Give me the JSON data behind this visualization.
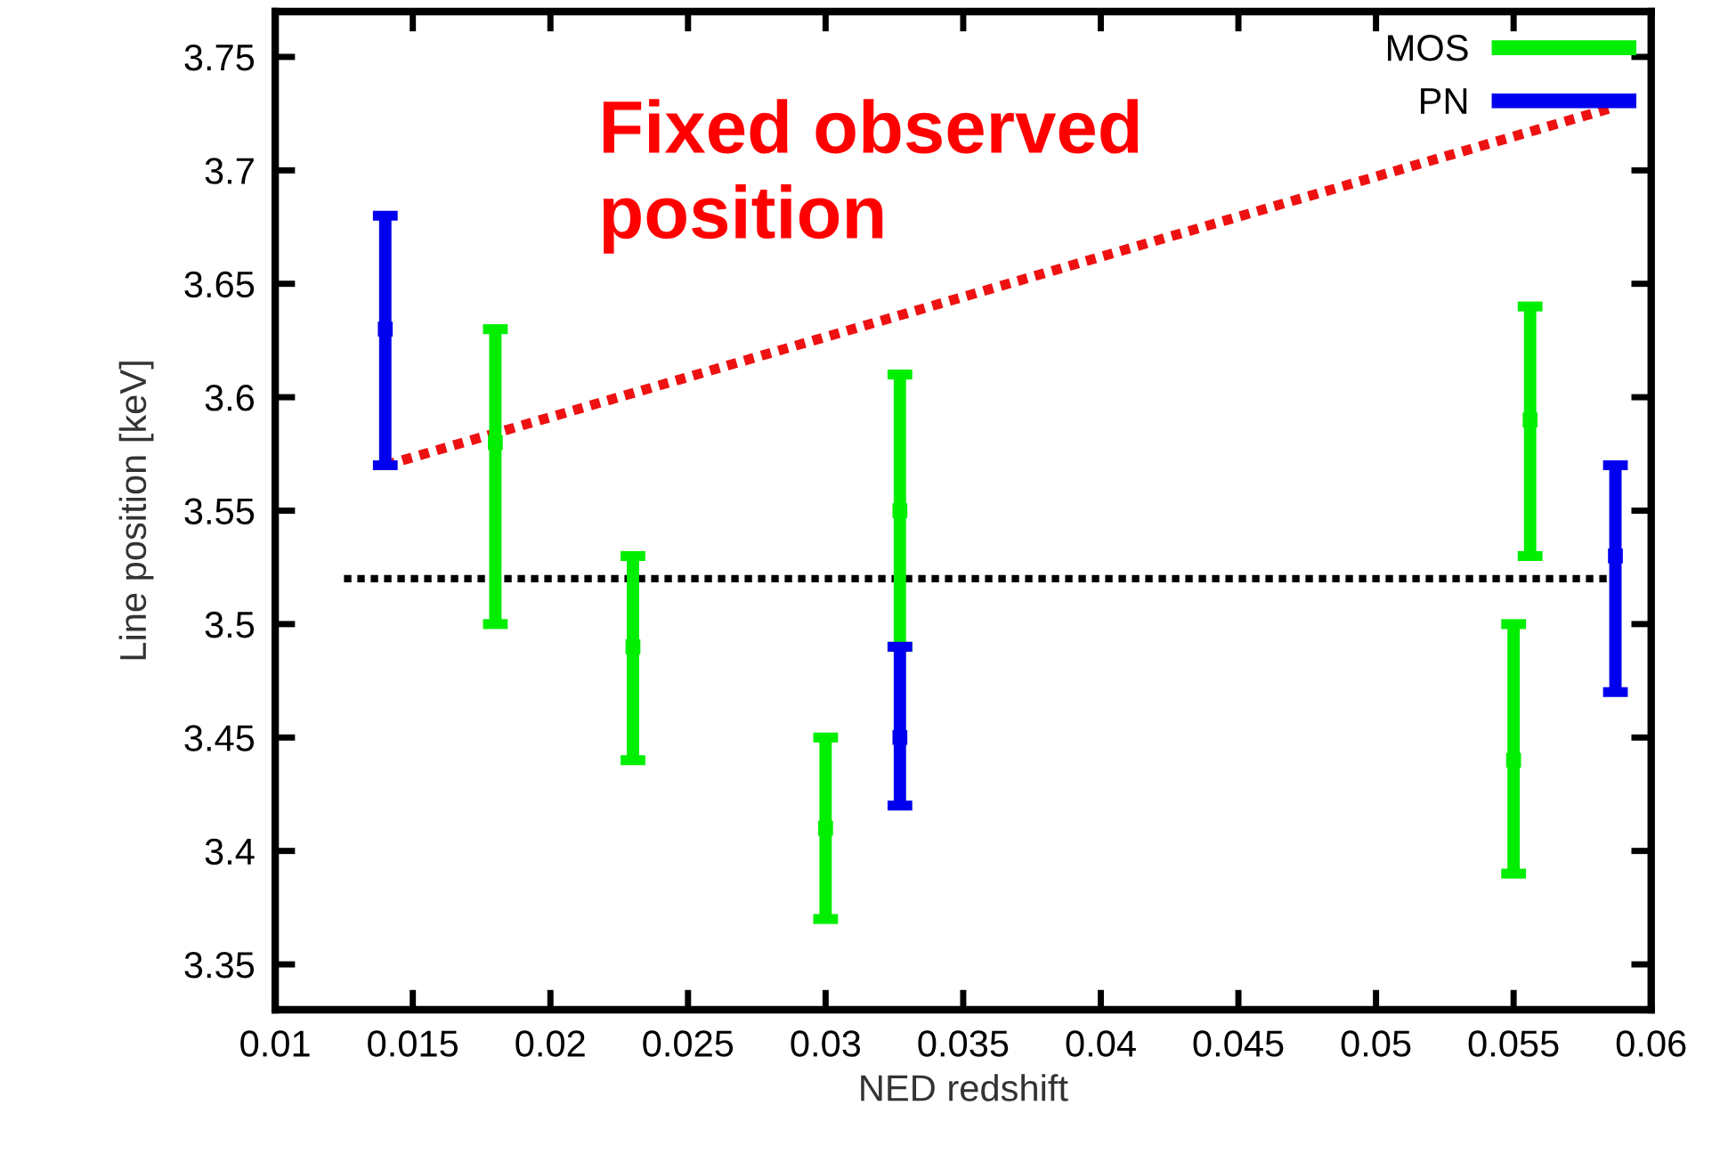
{
  "chart_data": {
    "type": "scatter",
    "xlabel": "NED redshift",
    "ylabel": "Line position [keV]",
    "annotations": [
      "Fixed observed position"
    ],
    "xlim": [
      0.01,
      0.06
    ],
    "xticks": [
      0.01,
      0.015,
      0.02,
      0.025,
      0.03,
      0.035,
      0.04,
      0.045,
      0.05,
      0.055,
      0.06
    ],
    "ylim": [
      3.33,
      3.77
    ],
    "yticks": [
      3.35,
      3.4,
      3.45,
      3.5,
      3.55,
      3.6,
      3.65,
      3.7,
      3.75
    ],
    "grid": false,
    "legend": "top right",
    "series": [
      {
        "name": "MOS",
        "color": "#00ee00",
        "marker": "square",
        "x": [
          0.018,
          0.023,
          0.03,
          0.0327,
          0.055,
          0.0556
        ],
        "values": [
          3.58,
          3.49,
          3.41,
          3.55,
          3.44,
          3.59
        ],
        "errors": [
          [
            3.5,
            3.63
          ],
          [
            3.44,
            3.53
          ],
          [
            3.37,
            3.45
          ],
          [
            3.49,
            3.61
          ],
          [
            3.39,
            3.5
          ],
          [
            3.53,
            3.64
          ]
        ]
      },
      {
        "name": "PN",
        "color": "#0000ee",
        "marker": "square",
        "x": [
          0.014,
          0.0327,
          0.0587
        ],
        "values": [
          3.63,
          3.45,
          3.53
        ],
        "errors": [
          [
            3.57,
            3.68
          ],
          [
            3.42,
            3.49
          ],
          [
            3.47,
            3.57
          ]
        ]
      },
      {
        "type": "line",
        "color": "#ee1111",
        "line_style": "dotted",
        "x": [
          0.014,
          0.0587
        ],
        "values": [
          3.57,
          3.728
        ]
      },
      {
        "type": "line",
        "color": "#000000",
        "line_style": "dotted",
        "x": [
          0.0125,
          0.0585
        ],
        "values": [
          3.52,
          3.52
        ]
      }
    ]
  }
}
